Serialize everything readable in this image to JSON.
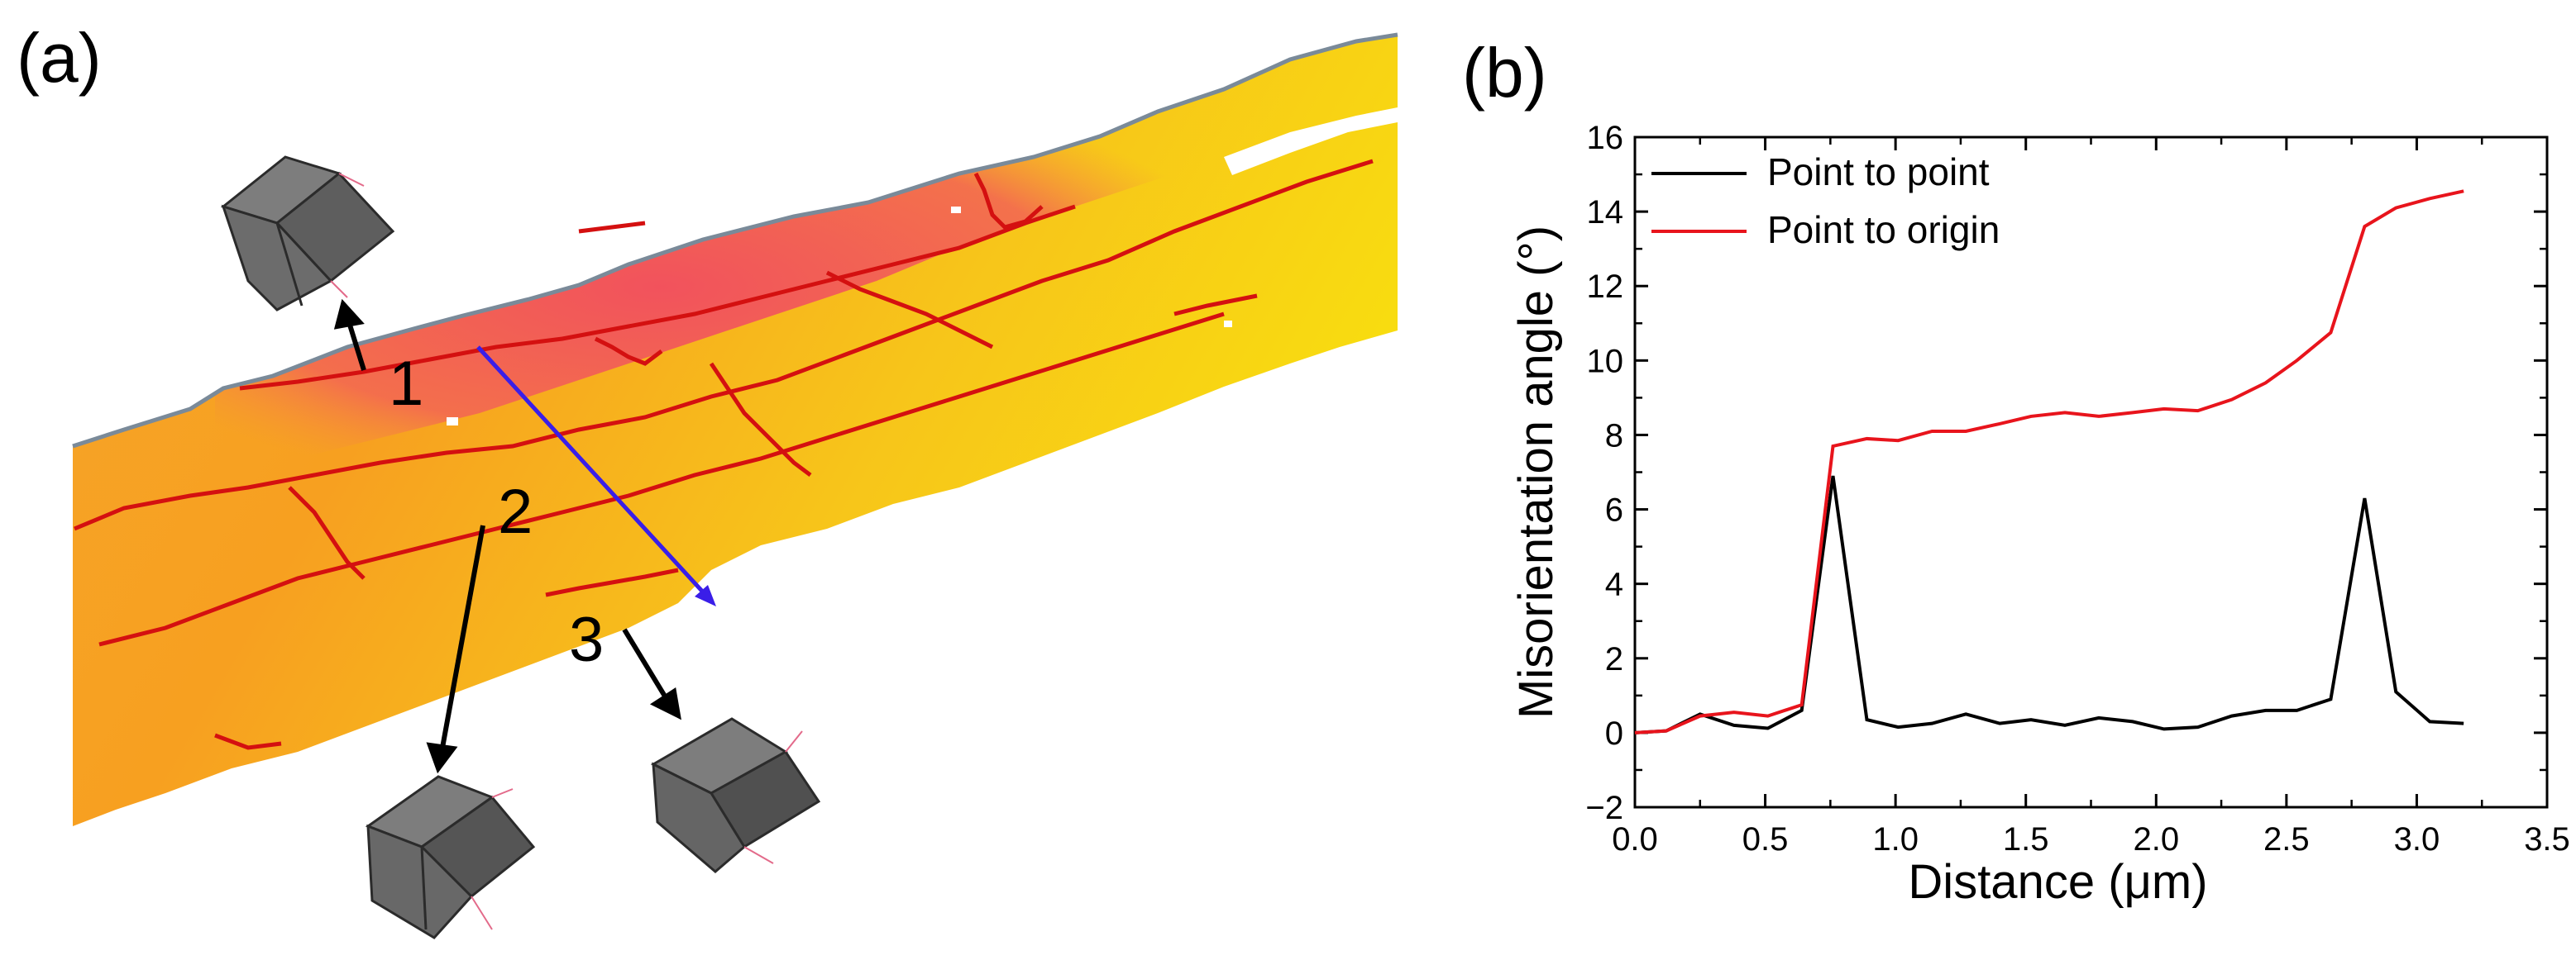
{
  "panels": {
    "a": {
      "label": "(a)"
    },
    "b": {
      "label": "(b)"
    }
  },
  "map": {
    "description_markers": [
      "1",
      "2",
      "3"
    ],
    "colors": {
      "red_zone": "#f2545f",
      "orange_zone": "#f6a020",
      "yellow_zone": "#f7d000",
      "boundary": "#d41010",
      "edge": "#7a8a99",
      "scan_line": "#3a1ee8",
      "arrow": "#000000",
      "cube_face": "#6a6a6a",
      "cube_dark": "#404040"
    }
  },
  "chart_data": {
    "type": "line",
    "title": "",
    "xlabel": "Distance (μm)",
    "ylabel": "Misorientation angle (°)",
    "xlim": [
      0.0,
      3.5
    ],
    "ylim": [
      -2,
      16
    ],
    "xticks": [
      0.0,
      0.5,
      1.0,
      1.5,
      2.0,
      2.5,
      3.0,
      3.5
    ],
    "yticks": [
      -2,
      0,
      2,
      4,
      6,
      8,
      10,
      12,
      14,
      16
    ],
    "xtick_labels": [
      "0.0",
      "0.5",
      "1.0",
      "1.5",
      "2.0",
      "2.5",
      "3.0",
      "3.5"
    ],
    "ytick_labels": [
      "−2",
      "0",
      "2",
      "4",
      "6",
      "8",
      "10",
      "12",
      "14",
      "16"
    ],
    "legend_position": "top-left",
    "series": [
      {
        "name": "Point to point",
        "color": "#000000",
        "x": [
          0.0,
          0.12,
          0.25,
          0.38,
          0.51,
          0.64,
          0.76,
          0.89,
          1.01,
          1.14,
          1.27,
          1.4,
          1.52,
          1.65,
          1.78,
          1.91,
          2.03,
          2.16,
          2.29,
          2.42,
          2.54,
          2.67,
          2.8,
          2.92,
          3.05,
          3.18
        ],
        "values": [
          0.0,
          0.05,
          0.5,
          0.2,
          0.12,
          0.6,
          6.9,
          0.35,
          0.15,
          0.25,
          0.5,
          0.25,
          0.35,
          0.2,
          0.4,
          0.3,
          0.1,
          0.15,
          0.45,
          0.6,
          0.6,
          0.9,
          6.3,
          1.1,
          0.3,
          0.25
        ]
      },
      {
        "name": "Point to origin",
        "color": "#e8141c",
        "x": [
          0.0,
          0.12,
          0.25,
          0.38,
          0.51,
          0.64,
          0.76,
          0.89,
          1.01,
          1.14,
          1.27,
          1.4,
          1.52,
          1.65,
          1.78,
          1.91,
          2.03,
          2.16,
          2.29,
          2.42,
          2.54,
          2.67,
          2.8,
          2.92,
          3.05,
          3.18
        ],
        "values": [
          0.0,
          0.05,
          0.45,
          0.55,
          0.45,
          0.75,
          7.7,
          7.9,
          7.85,
          8.1,
          8.1,
          8.3,
          8.5,
          8.6,
          8.5,
          8.6,
          8.7,
          8.65,
          8.95,
          9.4,
          10.0,
          10.75,
          13.6,
          14.1,
          14.35,
          14.55
        ]
      }
    ]
  }
}
